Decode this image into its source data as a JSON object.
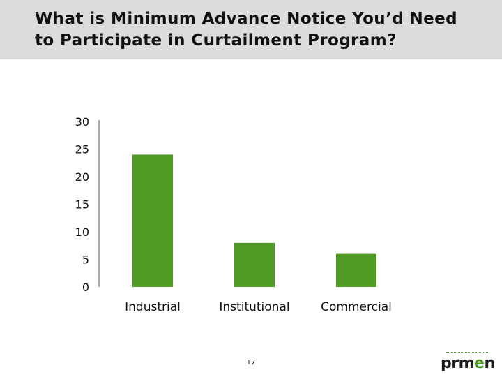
{
  "slide": {
    "title_line1": "What is Minimum Advance Notice You’d Need",
    "title_line2": "to Participate in Curtailment Program?",
    "page_number": "17",
    "logo": {
      "part1": "prm",
      "part2": "e",
      "part3": "n"
    }
  },
  "colors": {
    "bar": "#4f9a22",
    "title_band": "#dcdcdc",
    "axis": "#555555"
  },
  "chart_data": {
    "type": "bar",
    "categories": [
      "Industrial",
      "Institutional",
      "Commercial"
    ],
    "values": [
      24,
      8,
      6
    ],
    "title": "",
    "xlabel": "",
    "ylabel": "",
    "ylim": [
      0,
      30
    ],
    "yticks": [
      0,
      5,
      10,
      15,
      20,
      25,
      30
    ],
    "grid": false,
    "legend": "none"
  }
}
